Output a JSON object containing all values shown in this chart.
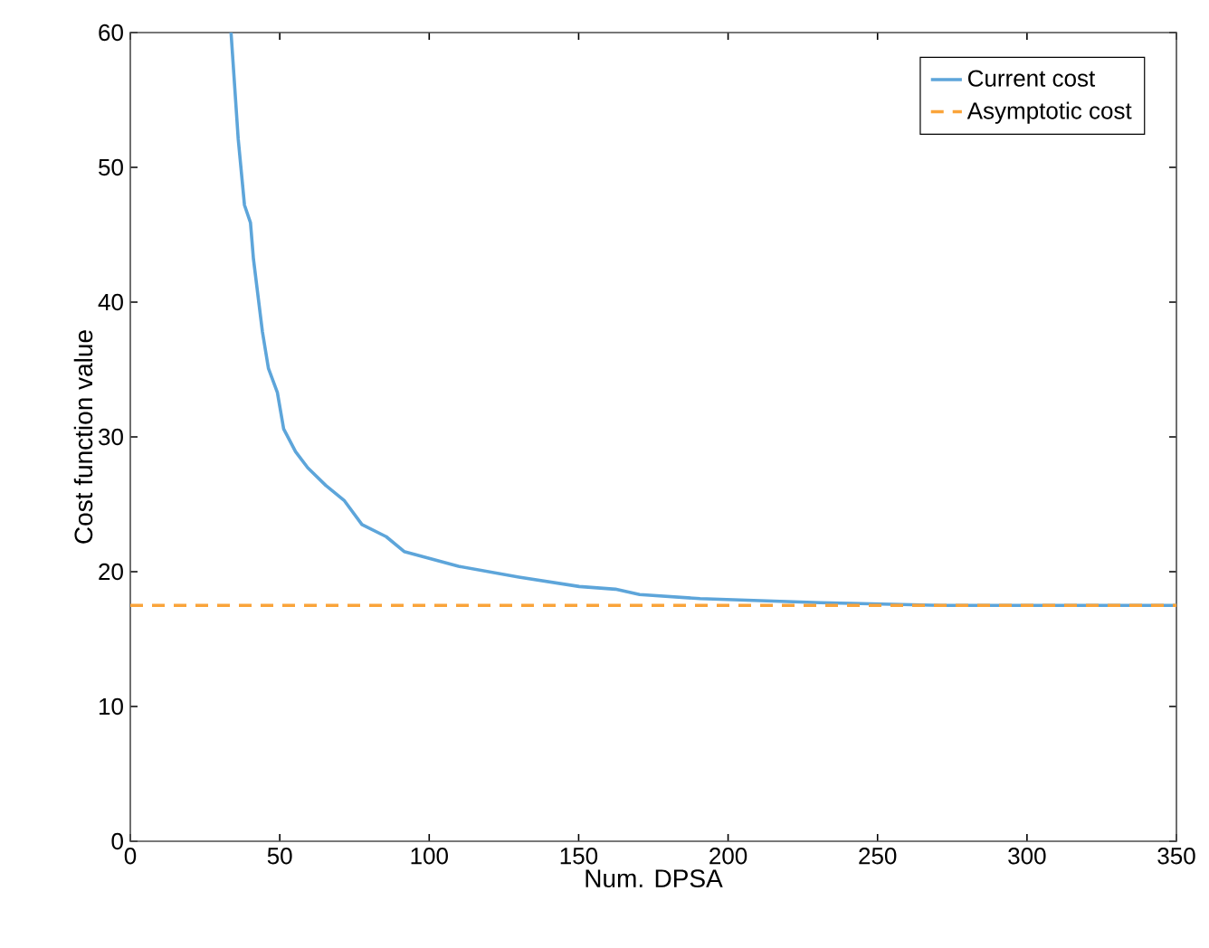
{
  "chart_data": {
    "type": "line",
    "xlabel": "Num. DPSA",
    "ylabel": "Cost function value",
    "xlim": [
      0,
      350
    ],
    "ylim": [
      0,
      60
    ],
    "xticks": [
      0,
      50,
      100,
      150,
      200,
      250,
      300,
      350
    ],
    "yticks": [
      0,
      10,
      20,
      30,
      40,
      50,
      60
    ],
    "legend": "top right",
    "grid": false,
    "series": [
      {
        "name": "Current cost",
        "color": "#5da5da",
        "x": [
          33.7,
          36.1,
          38.2,
          40.2,
          41.2,
          44.2,
          46.2,
          49.2,
          51.3,
          55.3,
          59.4,
          65.4,
          71.5,
          77.5,
          85.6,
          91.6,
          109.8,
          130,
          150.2,
          162.3,
          170.4,
          190.6,
          230.8,
          271.3,
          350
        ],
        "values": [
          60,
          52.1,
          47.2,
          45.9,
          43.2,
          37.8,
          35.1,
          33.3,
          30.6,
          28.9,
          27.7,
          26.4,
          25.3,
          23.5,
          22.6,
          21.5,
          20.4,
          19.6,
          18.9,
          18.7,
          18.3,
          18.0,
          17.7,
          17.5,
          17.5
        ]
      },
      {
        "name": "Asymptotic cost",
        "color": "#faa43a",
        "line_style": "dashed",
        "x": [
          0,
          350
        ],
        "values": [
          17.5,
          17.5
        ]
      }
    ]
  }
}
